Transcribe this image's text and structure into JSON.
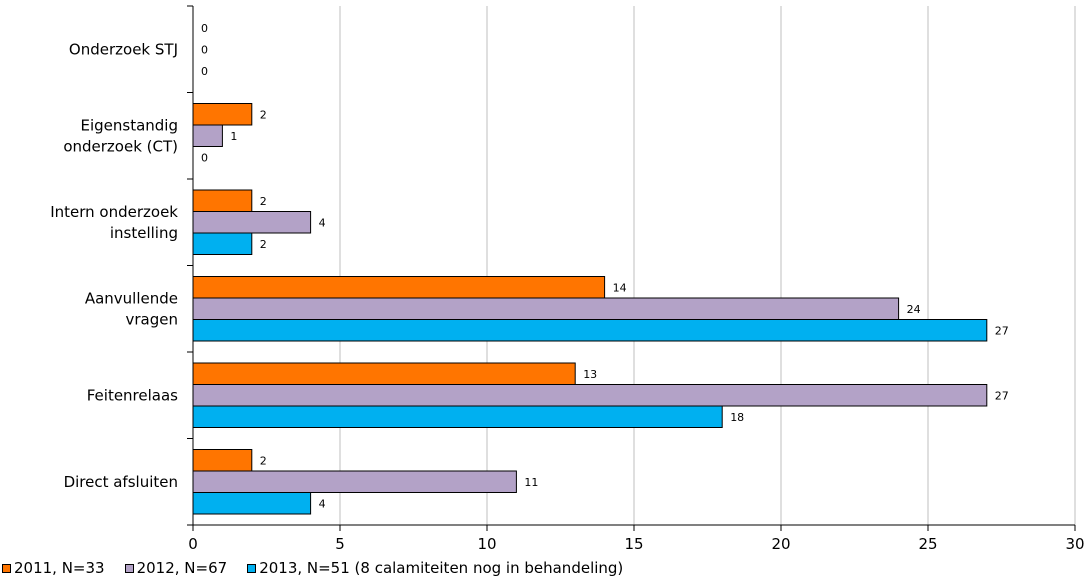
{
  "chart_data": {
    "type": "bar",
    "orientation": "horizontal",
    "categories": [
      "Onderzoek STJ",
      "Eigenstandig onderzoek (CT)",
      "Intern onderzoek instelling",
      "Aanvullende vragen",
      "Feitenrelaas",
      "Direct afsluiten"
    ],
    "category_lines": [
      [
        "Onderzoek STJ"
      ],
      [
        "Eigenstandig",
        "onderzoek (CT)"
      ],
      [
        "Intern onderzoek",
        "instelling"
      ],
      [
        "Aanvullende",
        "vragen"
      ],
      [
        "Feitenrelaas"
      ],
      [
        "Direct afsluiten"
      ]
    ],
    "series": [
      {
        "name": "2011, N=33",
        "color": "#FF7500",
        "values": [
          0,
          2,
          2,
          14,
          13,
          2
        ]
      },
      {
        "name": "2012, N=67",
        "color": "#B3A2C7",
        "values": [
          0,
          1,
          4,
          24,
          27,
          11
        ]
      },
      {
        "name": "2013, N=51 (8 calamiteiten nog in behandeling)",
        "color": "#00B0F0",
        "values": [
          0,
          0,
          2,
          27,
          18,
          4
        ]
      }
    ],
    "xlim": [
      0,
      30
    ],
    "xticks": [
      0,
      5,
      10,
      15,
      20,
      25,
      30
    ],
    "grid": "vertical",
    "legend_position": "bottom-left",
    "title": "",
    "xlabel": "",
    "ylabel": ""
  }
}
